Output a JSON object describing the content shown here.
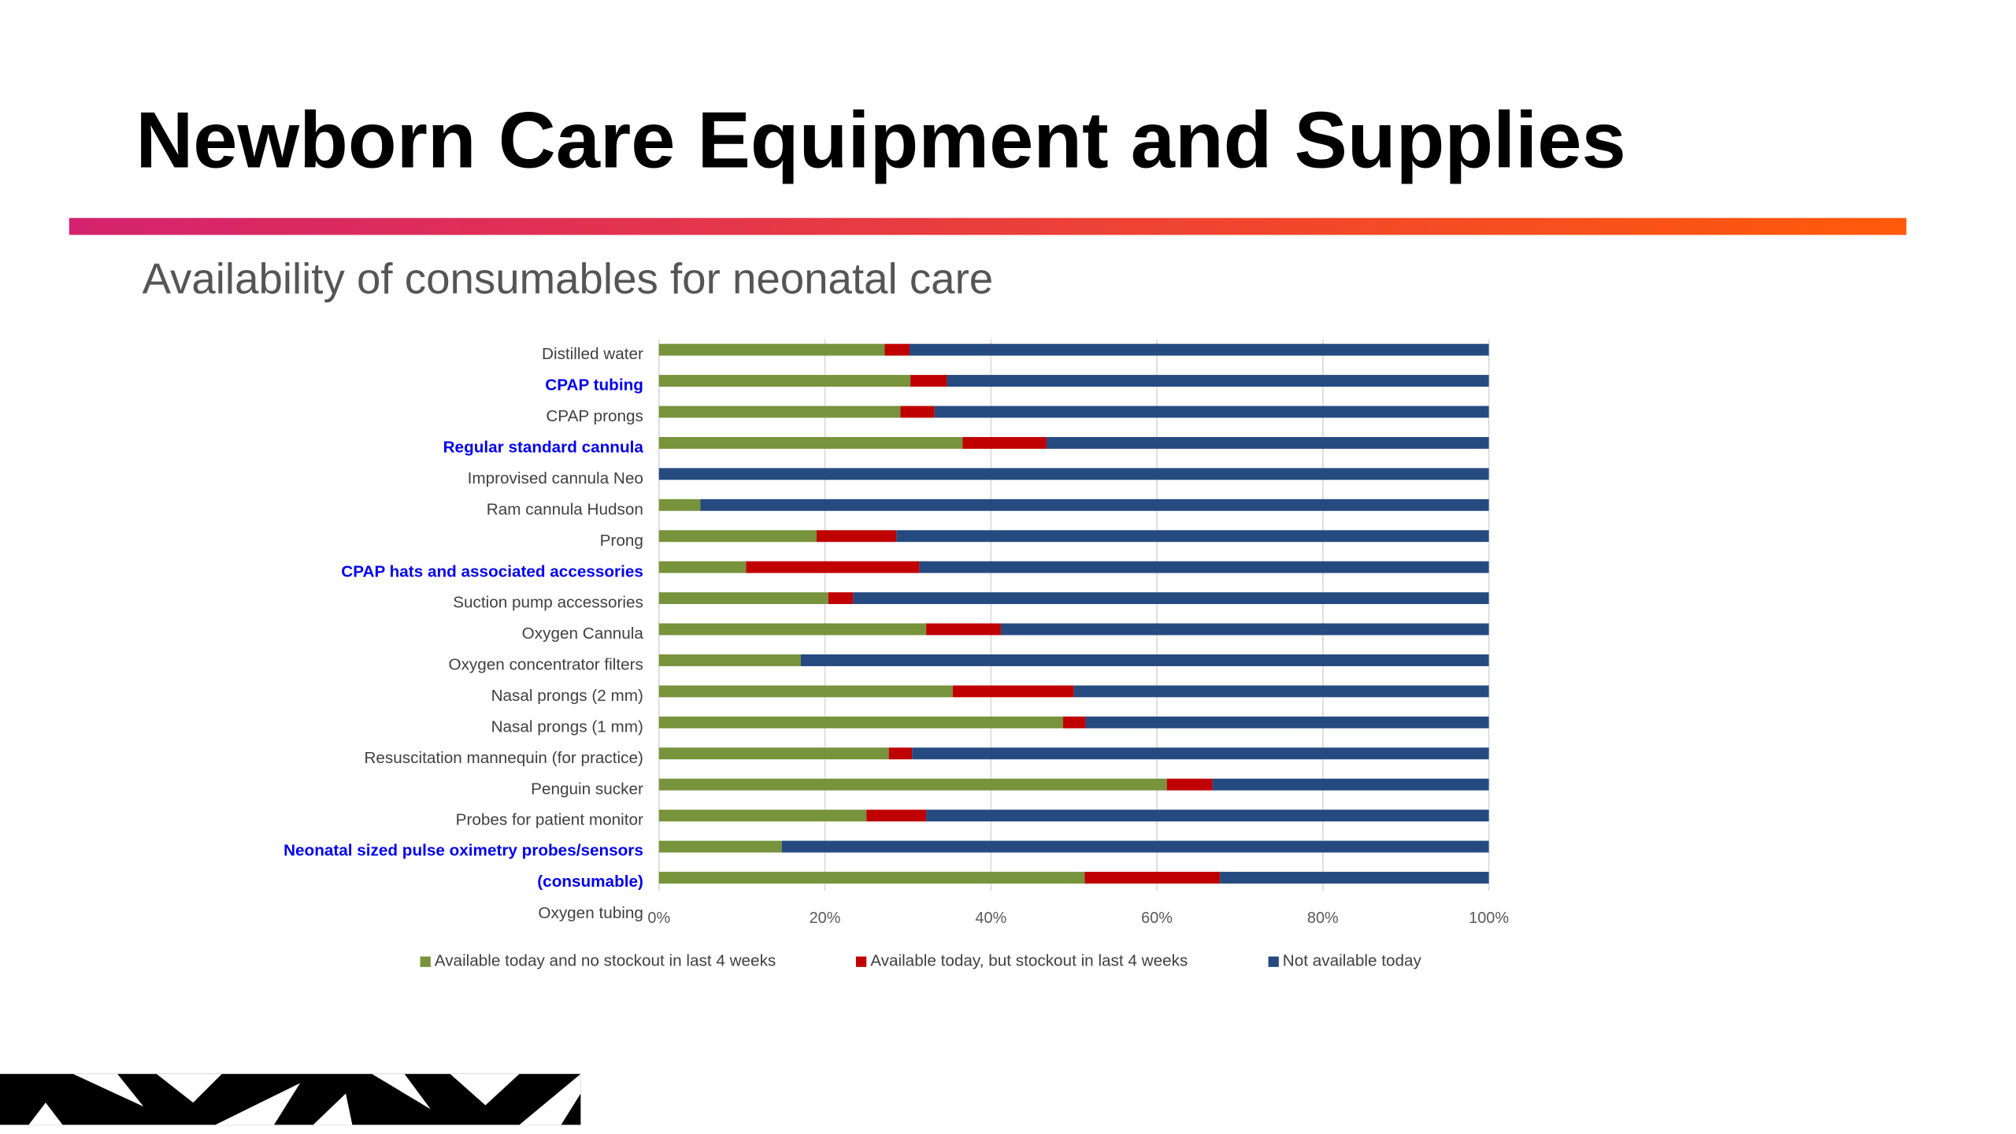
{
  "chart_data": {
    "type": "bar",
    "orientation": "horizontal",
    "stacked": true,
    "title": "Newborn Care Equipment and Supplies",
    "subtitle": "Availability of consumables for neonatal care",
    "categories": [
      "Distilled water",
      "CPAP tubing",
      "CPAP prongs",
      "Regular standard cannula",
      "Improvised cannula Neo",
      "Ram cannula Hudson",
      "Prong",
      "CPAP hats and associated accessories",
      "Suction pump accessories",
      "Oxygen Cannula",
      "Oxygen concentrator filters",
      "Nasal prongs (2 mm)",
      "Nasal prongs (1 mm)",
      "Resuscitation mannequin (for practice)",
      "Penguin sucker",
      "Probes for patient monitor",
      "Neonatal sized pulse oximetry probes/sensors (consumable)",
      "Oxygen tubing"
    ],
    "highlighted_categories": [
      1,
      3,
      7,
      16
    ],
    "series": [
      {
        "name": "Available today and no stockout in last 4 weeks",
        "color": "#77933c",
        "values": [
          27.2,
          30.3,
          29.1,
          36.6,
          0,
          5.0,
          19.0,
          10.5,
          20.4,
          32.2,
          17.1,
          35.4,
          48.7,
          27.7,
          61.2,
          25.0,
          14.8,
          51.3
        ]
      },
      {
        "name": "Available today, but stockout in last 4 weeks",
        "color": "#c00000",
        "values": [
          3.0,
          4.4,
          4.1,
          10.1,
          0,
          0,
          9.6,
          20.9,
          3.0,
          9.0,
          0,
          14.6,
          2.7,
          2.8,
          5.5,
          7.2,
          0,
          16.3
        ]
      },
      {
        "name": "Not available today",
        "color": "#254a80",
        "values": [
          69.8,
          65.3,
          66.8,
          53.3,
          100,
          95.0,
          71.4,
          68.6,
          76.6,
          58.8,
          82.9,
          50.0,
          48.6,
          69.5,
          33.3,
          67.8,
          85.2,
          32.4
        ]
      }
    ],
    "xlim": [
      0,
      100
    ],
    "xticks": [
      {
        "value": 0,
        "label": "0%"
      },
      {
        "value": 20,
        "label": "20%"
      },
      {
        "value": 40,
        "label": "40%"
      },
      {
        "value": 60,
        "label": "60%"
      },
      {
        "value": 80,
        "label": "80%"
      },
      {
        "value": 100,
        "label": "100%"
      }
    ],
    "grid": true,
    "legend": "bottom"
  }
}
